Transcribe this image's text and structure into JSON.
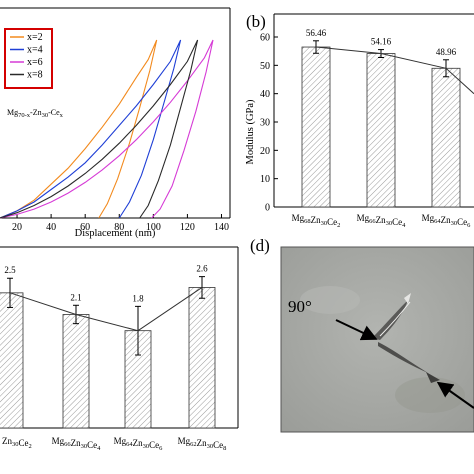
{
  "panels": {
    "a": {
      "letter": "",
      "legend_title": {
        "base": "Mg",
        "s1": "70-x",
        "mid1": "-Zn",
        "s2": "30",
        "mid2": "-Ce",
        "s3": "x"
      }
    },
    "b": {
      "letter": "(b)"
    },
    "c": {
      "letter": ""
    },
    "d": {
      "letter": "(d)",
      "angle_label": "90°"
    }
  },
  "colors": {
    "x2": "#f28a1e",
    "x4": "#1f3fd6",
    "x6": "#d63bd6",
    "x8": "#2a2a2a",
    "legend_border": "#d40000",
    "micrograph_bg": "#a8aaa6",
    "trend": "#333333"
  },
  "chart_data": [
    {
      "panel": "a",
      "type": "line",
      "xlabel": "Displacement (nm)",
      "ylabel": "",
      "xlim": [
        10,
        145
      ],
      "ylim": [
        0,
        1
      ],
      "xticks": [
        "20",
        "40",
        "60",
        "80",
        "100",
        "120",
        "140"
      ],
      "legend": {
        "placement": "top-left",
        "entries": [
          "x=2",
          "x=4",
          "x=6",
          "x=8"
        ]
      },
      "series": [
        {
          "name": "x=2",
          "color_key": "x2",
          "loading": [
            [
              10,
              0
            ],
            [
              20,
              0.04
            ],
            [
              30,
              0.1
            ],
            [
              40,
              0.19
            ],
            [
              50,
              0.28
            ],
            [
              60,
              0.39
            ],
            [
              70,
              0.51
            ],
            [
              80,
              0.64
            ],
            [
              90,
              0.79
            ],
            [
              97,
              0.89
            ],
            [
              102,
              1.0
            ]
          ],
          "unloading": [
            [
              102,
              1.0
            ],
            [
              98,
              0.83
            ],
            [
              92,
              0.62
            ],
            [
              86,
              0.42
            ],
            [
              79,
              0.22
            ],
            [
              73,
              0.08
            ],
            [
              68,
              0
            ]
          ]
        },
        {
          "name": "x=4",
          "color_key": "x4",
          "loading": [
            [
              10,
              0
            ],
            [
              20,
              0.04
            ],
            [
              30,
              0.09
            ],
            [
              40,
              0.16
            ],
            [
              50,
              0.23
            ],
            [
              60,
              0.31
            ],
            [
              70,
              0.41
            ],
            [
              80,
              0.52
            ],
            [
              90,
              0.63
            ],
            [
              100,
              0.75
            ],
            [
              110,
              0.88
            ],
            [
              116,
              1.0
            ]
          ],
          "unloading": [
            [
              116,
              1.0
            ],
            [
              112,
              0.84
            ],
            [
              106,
              0.64
            ],
            [
              100,
              0.44
            ],
            [
              93,
              0.24
            ],
            [
              86,
              0.09
            ],
            [
              80,
              0
            ]
          ]
        },
        {
          "name": "x=6",
          "color_key": "x6",
          "loading": [
            [
              10,
              0
            ],
            [
              20,
              0.02
            ],
            [
              30,
              0.05
            ],
            [
              40,
              0.09
            ],
            [
              50,
              0.14
            ],
            [
              60,
              0.2
            ],
            [
              70,
              0.27
            ],
            [
              80,
              0.35
            ],
            [
              90,
              0.44
            ],
            [
              100,
              0.54
            ],
            [
              110,
              0.65
            ],
            [
              120,
              0.77
            ],
            [
              130,
              0.9
            ],
            [
              135,
              1.0
            ]
          ],
          "unloading": [
            [
              135,
              1.0
            ],
            [
              131,
              0.82
            ],
            [
              125,
              0.6
            ],
            [
              118,
              0.38
            ],
            [
              111,
              0.18
            ],
            [
              104,
              0.05
            ],
            [
              99,
              0
            ]
          ]
        },
        {
          "name": "x=8",
          "color_key": "x8",
          "loading": [
            [
              10,
              0
            ],
            [
              20,
              0.03
            ],
            [
              30,
              0.07
            ],
            [
              40,
              0.12
            ],
            [
              50,
              0.18
            ],
            [
              60,
              0.25
            ],
            [
              70,
              0.33
            ],
            [
              80,
              0.42
            ],
            [
              90,
              0.52
            ],
            [
              100,
              0.63
            ],
            [
              110,
              0.75
            ],
            [
              120,
              0.88
            ],
            [
              126,
              1.0
            ]
          ],
          "unloading": [
            [
              126,
              1.0
            ],
            [
              122,
              0.83
            ],
            [
              116,
              0.62
            ],
            [
              110,
              0.41
            ],
            [
              103,
              0.21
            ],
            [
              97,
              0.07
            ],
            [
              92,
              0
            ]
          ]
        }
      ]
    },
    {
      "panel": "b",
      "type": "bar",
      "xlabel": "",
      "ylabel": "Modulus (GPa)",
      "ylim": [
        0,
        60
      ],
      "yticks": [
        "0",
        "10",
        "20",
        "30",
        "40",
        "50",
        "60"
      ],
      "categories": [
        {
          "base1": "Mg",
          "s1": "68",
          "base2": "Zn",
          "s2": "30",
          "base3": "Ce",
          "s3": "2"
        },
        {
          "base1": "Mg",
          "s1": "66",
          "base2": "Zn",
          "s2": "30",
          "base3": "Ce",
          "s3": "4"
        },
        {
          "base1": "Mg",
          "s1": "64",
          "base2": "Zn",
          "s2": "30",
          "base3": "Ce",
          "s3": "6"
        }
      ],
      "values": [
        56.46,
        54.16,
        48.96
      ],
      "value_labels": [
        "56.46",
        "54.16",
        "48.96"
      ],
      "errors": [
        2.2,
        1.4,
        3.0
      ],
      "trend_extra": 40
    },
    {
      "panel": "c",
      "type": "bar",
      "xlabel": "",
      "ylabel": "",
      "ylim": [
        0,
        3.2
      ],
      "categories": [
        {
          "base1": "Zn",
          "s1": "30",
          "base2": "Ce",
          "s2": "2",
          "base3": "",
          "s3": ""
        },
        {
          "base1": "Mg",
          "s1": "66",
          "base2": "Zn",
          "s2": "30",
          "base3": "Ce",
          "s3": "4"
        },
        {
          "base1": "Mg",
          "s1": "64",
          "base2": "Zn",
          "s2": "30",
          "base3": "Ce",
          "s3": "6"
        },
        {
          "base1": "Mg",
          "s1": "62",
          "base2": "Zn",
          "s2": "30",
          "base3": "Ce",
          "s3": "8"
        }
      ],
      "values": [
        2.5,
        2.1,
        1.8,
        2.6
      ],
      "value_labels": [
        "2.5",
        "2.1",
        "1.8",
        "2.6"
      ],
      "errors": [
        0.27,
        0.17,
        0.45,
        0.2
      ]
    }
  ]
}
